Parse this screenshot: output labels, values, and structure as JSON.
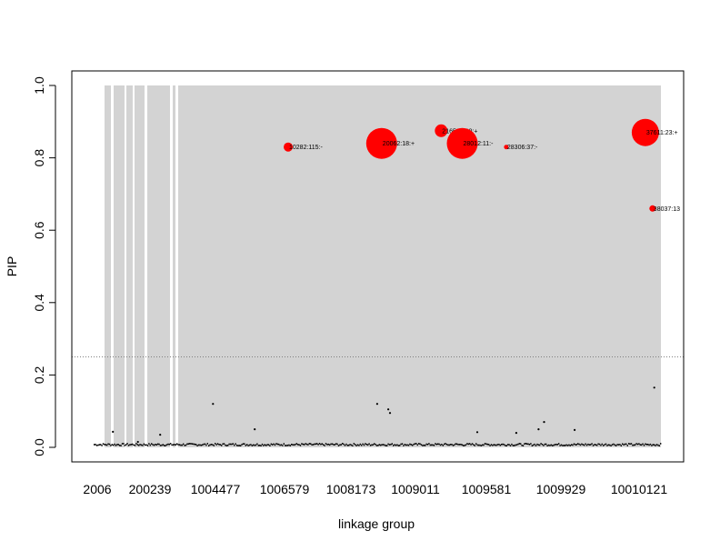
{
  "chart_data": {
    "type": "scatter",
    "title": "",
    "xlabel": "linkage group",
    "ylabel": "PIP",
    "ylim": [
      0,
      1
    ],
    "y_ticks": [
      0.0,
      0.2,
      0.4,
      0.6,
      0.8,
      1.0
    ],
    "y_tick_labels": [
      "0.0",
      "0.2",
      "0.4",
      "0.6",
      "0.8",
      "1.0"
    ],
    "x_tick_labels": [
      "2006",
      "200239",
      "1004477",
      "1006579",
      "1008173",
      "1009011",
      "1009581",
      "1009929",
      "10010121"
    ],
    "threshold": 0.25,
    "grid": false,
    "legend": "none",
    "colors": {
      "highlight": "#ff0000",
      "band": "#d3d3d3",
      "threshold_line": "#808080",
      "points": "#000000"
    },
    "highlighted_snps": [
      {
        "label": "10282:115:-",
        "pip": 0.83,
        "pos": 0.33
      },
      {
        "label": "20062:18:+",
        "pip": 0.84,
        "pos": 0.498
      },
      {
        "label": "21656:100:+",
        "pip": 0.875,
        "pos": 0.605
      },
      {
        "label": "28012:11:-",
        "pip": 0.84,
        "pos": 0.643
      },
      {
        "label": "28306:37:-",
        "pip": 0.83,
        "pos": 0.722
      },
      {
        "label": "37611:23:+",
        "pip": 0.87,
        "pos": 0.972
      },
      {
        "label": "38037:13",
        "pip": 0.66,
        "pos": 0.985
      }
    ],
    "minor_points": [
      {
        "pos": 0.015,
        "pip": 0.043
      },
      {
        "pos": 0.06,
        "pip": 0.015
      },
      {
        "pos": 0.1,
        "pip": 0.035
      },
      {
        "pos": 0.195,
        "pip": 0.12
      },
      {
        "pos": 0.27,
        "pip": 0.05
      },
      {
        "pos": 0.49,
        "pip": 0.12
      },
      {
        "pos": 0.51,
        "pip": 0.105
      },
      {
        "pos": 0.513,
        "pip": 0.095
      },
      {
        "pos": 0.67,
        "pip": 0.042
      },
      {
        "pos": 0.74,
        "pip": 0.04
      },
      {
        "pos": 0.78,
        "pip": 0.05
      },
      {
        "pos": 0.79,
        "pip": 0.07
      },
      {
        "pos": 0.845,
        "pip": 0.048
      },
      {
        "pos": 0.988,
        "pip": 0.165
      }
    ]
  }
}
